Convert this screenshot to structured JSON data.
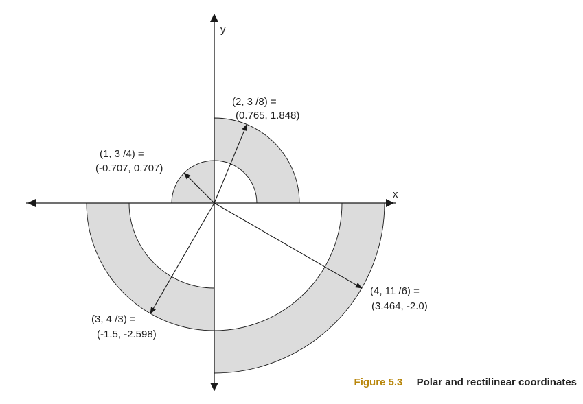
{
  "axes": {
    "x_label": "x",
    "y_label": "y"
  },
  "points": [
    {
      "id": "p1",
      "polar": "(1, 3  /4) =",
      "rect": "(-0.707, 0.707)",
      "r": 1,
      "angle_deg": 135,
      "arc_start_deg": 90,
      "arc_end_deg": 180
    },
    {
      "id": "p2",
      "polar": "(2, 3  /8) =",
      "rect": "(0.765, 1.848)",
      "r": 2,
      "angle_deg": 67.5,
      "arc_start_deg": 0,
      "arc_end_deg": 90
    },
    {
      "id": "p3",
      "polar": "(3, 4  /3) =",
      "rect": "(-1.5, -2.598)",
      "r": 3,
      "angle_deg": 240,
      "arc_start_deg": 180,
      "arc_end_deg": 270
    },
    {
      "id": "p4",
      "polar": "(4, 11  /6) =",
      "rect": "(3.464, -2.0)",
      "r": 4,
      "angle_deg": 330,
      "arc_start_deg": 270,
      "arc_end_deg": 360
    }
  ],
  "caption": {
    "number": "Figure 5.3",
    "title": "Polar and rectilinear coordinates"
  },
  "colors": {
    "band_fill": "#dcdcdc",
    "stroke": "#1a1a1a",
    "caption_accent": "#b8860b"
  }
}
